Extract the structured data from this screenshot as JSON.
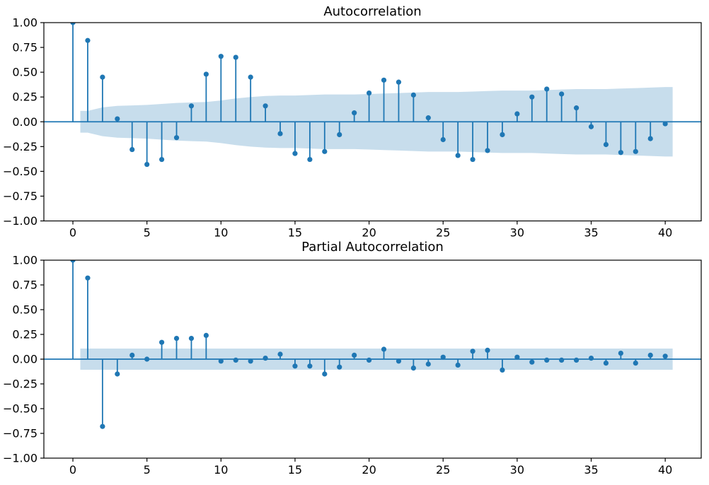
{
  "figure": {
    "background": "#ffffff"
  },
  "colors": {
    "stem": "#1f77b4",
    "band": "rgba(31,119,180,0.25)",
    "axis": "#000000",
    "text": "#000000"
  },
  "chart_data": [
    {
      "type": "stem",
      "title": "Autocorrelation",
      "xlabel": "",
      "ylabel": "",
      "grid": false,
      "legend": null,
      "x": [
        0,
        1,
        2,
        3,
        4,
        5,
        6,
        7,
        8,
        9,
        10,
        11,
        12,
        13,
        14,
        15,
        16,
        17,
        18,
        19,
        20,
        21,
        22,
        23,
        24,
        25,
        26,
        27,
        28,
        29,
        30,
        31,
        32,
        33,
        34,
        35,
        36,
        37,
        38,
        39,
        40
      ],
      "values": [
        1.0,
        0.82,
        0.45,
        0.03,
        -0.28,
        -0.43,
        -0.38,
        -0.16,
        0.16,
        0.48,
        0.66,
        0.65,
        0.45,
        0.16,
        -0.12,
        -0.32,
        -0.38,
        -0.3,
        -0.13,
        0.09,
        0.29,
        0.42,
        0.4,
        0.27,
        0.04,
        -0.18,
        -0.34,
        -0.38,
        -0.29,
        -0.13,
        0.08,
        0.25,
        0.33,
        0.28,
        0.14,
        -0.05,
        -0.23,
        -0.31,
        -0.3,
        -0.17,
        -0.02
      ],
      "confidence_band": {
        "x_start": 0.5,
        "x_end": 40.5,
        "half_widths": [
          0.11,
          0.145,
          0.16,
          0.165,
          0.17,
          0.18,
          0.19,
          0.195,
          0.2,
          0.215,
          0.235,
          0.25,
          0.26,
          0.265,
          0.265,
          0.27,
          0.275,
          0.275,
          0.275,
          0.28,
          0.285,
          0.29,
          0.295,
          0.3,
          0.3,
          0.3,
          0.305,
          0.31,
          0.315,
          0.315,
          0.315,
          0.32,
          0.325,
          0.33,
          0.33,
          0.33,
          0.335,
          0.34,
          0.345,
          0.35
        ]
      },
      "xlim": [
        -1.96,
        42.43
      ],
      "ylim": [
        -1,
        1
      ],
      "xticks": [
        0,
        5,
        10,
        15,
        20,
        25,
        30,
        35,
        40
      ],
      "xtick_labels": [
        "0",
        "5",
        "10",
        "15",
        "20",
        "25",
        "30",
        "35",
        "40"
      ],
      "yticks": [
        1,
        0.75,
        0.5,
        0.25,
        0,
        -0.25,
        -0.5,
        -0.75,
        -1
      ],
      "ytick_labels": [
        "1.00",
        "0.75",
        "0.50",
        "0.25",
        "0.00",
        "−0.25",
        "−0.50",
        "−0.75",
        "−1.00"
      ]
    },
    {
      "type": "stem",
      "title": "Partial Autocorrelation",
      "xlabel": "",
      "ylabel": "",
      "grid": false,
      "legend": null,
      "x": [
        0,
        1,
        2,
        3,
        4,
        5,
        6,
        7,
        8,
        9,
        10,
        11,
        12,
        13,
        14,
        15,
        16,
        17,
        18,
        19,
        20,
        21,
        22,
        23,
        24,
        25,
        26,
        27,
        28,
        29,
        30,
        31,
        32,
        33,
        34,
        35,
        36,
        37,
        38,
        39,
        40
      ],
      "values": [
        1.0,
        0.82,
        -0.68,
        -0.15,
        0.04,
        0.0,
        0.17,
        0.21,
        0.21,
        0.24,
        -0.02,
        -0.01,
        -0.02,
        0.01,
        0.05,
        -0.07,
        -0.07,
        -0.15,
        -0.08,
        0.04,
        -0.01,
        0.1,
        -0.02,
        -0.09,
        -0.05,
        0.02,
        -0.06,
        0.08,
        0.09,
        -0.11,
        0.02,
        -0.03,
        -0.01,
        -0.01,
        -0.01,
        0.01,
        -0.04,
        0.06,
        -0.04,
        0.04,
        0.03
      ],
      "confidence_band": {
        "x_start": 0.5,
        "x_end": 40.5,
        "half_widths": [
          0.107,
          0.107,
          0.107,
          0.107,
          0.107,
          0.107,
          0.107,
          0.107,
          0.107,
          0.107,
          0.107,
          0.107,
          0.107,
          0.107,
          0.107,
          0.107,
          0.107,
          0.107,
          0.107,
          0.107,
          0.107,
          0.107,
          0.107,
          0.107,
          0.107,
          0.107,
          0.107,
          0.107,
          0.107,
          0.107,
          0.107,
          0.107,
          0.107,
          0.107,
          0.107,
          0.107,
          0.107,
          0.107,
          0.107,
          0.107
        ]
      },
      "xlim": [
        -1.96,
        42.43
      ],
      "ylim": [
        -1,
        1
      ],
      "xticks": [
        0,
        5,
        10,
        15,
        20,
        25,
        30,
        35,
        40
      ],
      "xtick_labels": [
        "0",
        "5",
        "10",
        "15",
        "20",
        "25",
        "30",
        "35",
        "40"
      ],
      "yticks": [
        1,
        0.75,
        0.5,
        0.25,
        0,
        -0.25,
        -0.5,
        -0.75,
        -1
      ],
      "ytick_labels": [
        "1.00",
        "0.75",
        "0.50",
        "0.25",
        "0.00",
        "−0.25",
        "−0.50",
        "−0.75",
        "−1.00"
      ]
    }
  ]
}
